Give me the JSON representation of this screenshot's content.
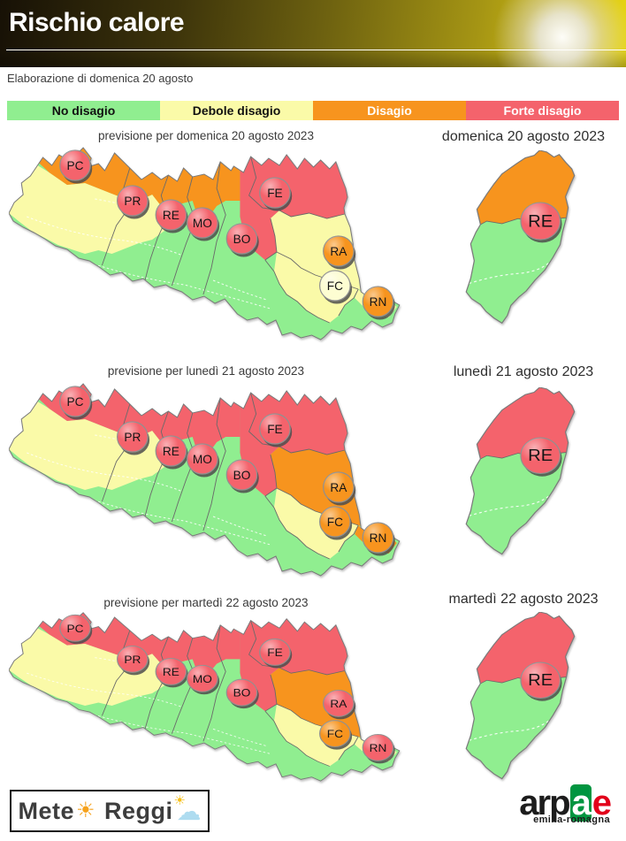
{
  "header": {
    "title": "Rischio calore"
  },
  "subtitle": "Elaborazione di domenica 20 agosto",
  "colors": {
    "green": "#90ee90",
    "yellow": "#fafaa8",
    "orange": "#f7941e",
    "red": "#f4636c",
    "pale": "#fdfdd2"
  },
  "legend": [
    {
      "label": "No disagio",
      "color": "green",
      "text": "#111111"
    },
    {
      "label": "Debole disagio",
      "color": "yellow",
      "text": "#111111"
    },
    {
      "label": "Disagio",
      "color": "orange",
      "text": "#ffffff"
    },
    {
      "label": "Forte disagio",
      "color": "red",
      "text": "#ffffff"
    }
  ],
  "days": [
    {
      "left_title": "previsione per domenica 20 agosto 2023",
      "right_title": "domenica 20 agosto 2023",
      "zones": {
        "band_west": "orange",
        "band_east": "red",
        "ra": "yellow",
        "fc": "yellow",
        "coast": "yellow",
        "re_north": "orange"
      },
      "markers": [
        {
          "label": "PC",
          "color": "red"
        },
        {
          "label": "PR",
          "color": "red"
        },
        {
          "label": "RE",
          "color": "red"
        },
        {
          "label": "MO",
          "color": "red"
        },
        {
          "label": "BO",
          "color": "red"
        },
        {
          "label": "FE",
          "color": "red"
        },
        {
          "label": "RA",
          "color": "orange"
        },
        {
          "label": "FC",
          "color": "pale"
        },
        {
          "label": "RN",
          "color": "orange"
        }
      ],
      "re_marker": {
        "label": "RE",
        "color": "red"
      }
    },
    {
      "left_title": "previsione per lunedì 21 agosto 2023",
      "right_title": "lunedì 21 agosto 2023",
      "zones": {
        "band_west": "red",
        "band_east": "red",
        "ra": "orange",
        "fc": "yellow",
        "coast": "orange",
        "re_north": "red"
      },
      "markers": [
        {
          "label": "PC",
          "color": "red"
        },
        {
          "label": "PR",
          "color": "red"
        },
        {
          "label": "RE",
          "color": "red"
        },
        {
          "label": "MO",
          "color": "red"
        },
        {
          "label": "BO",
          "color": "red"
        },
        {
          "label": "FE",
          "color": "red"
        },
        {
          "label": "RA",
          "color": "orange"
        },
        {
          "label": "FC",
          "color": "orange"
        },
        {
          "label": "RN",
          "color": "orange"
        }
      ],
      "re_marker": {
        "label": "RE",
        "color": "red"
      }
    },
    {
      "left_title": "previsione per martedì 22 agosto 2023",
      "right_title": "martedì 22 agosto 2023",
      "zones": {
        "band_west": "red",
        "band_east": "red",
        "ra": "orange",
        "fc": "yellow",
        "coast": "yellow",
        "re_north": "red"
      },
      "markers": [
        {
          "label": "PC",
          "color": "red"
        },
        {
          "label": "PR",
          "color": "red"
        },
        {
          "label": "RE",
          "color": "red"
        },
        {
          "label": "MO",
          "color": "red"
        },
        {
          "label": "BO",
          "color": "red"
        },
        {
          "label": "FE",
          "color": "red"
        },
        {
          "label": "RA",
          "color": "red"
        },
        {
          "label": "FC",
          "color": "orange"
        },
        {
          "label": "RN",
          "color": "red"
        }
      ],
      "re_marker": {
        "label": "RE",
        "color": "red"
      }
    }
  ],
  "footer": {
    "meteo": {
      "text1": "Mete",
      "text2": "Reggi"
    },
    "arpae": {
      "black": "arp",
      "green_letter": "a",
      "red_letter": "e",
      "sub": "emilia-romagna",
      "green_hex": "#009540",
      "red_hex": "#e2001a"
    }
  }
}
